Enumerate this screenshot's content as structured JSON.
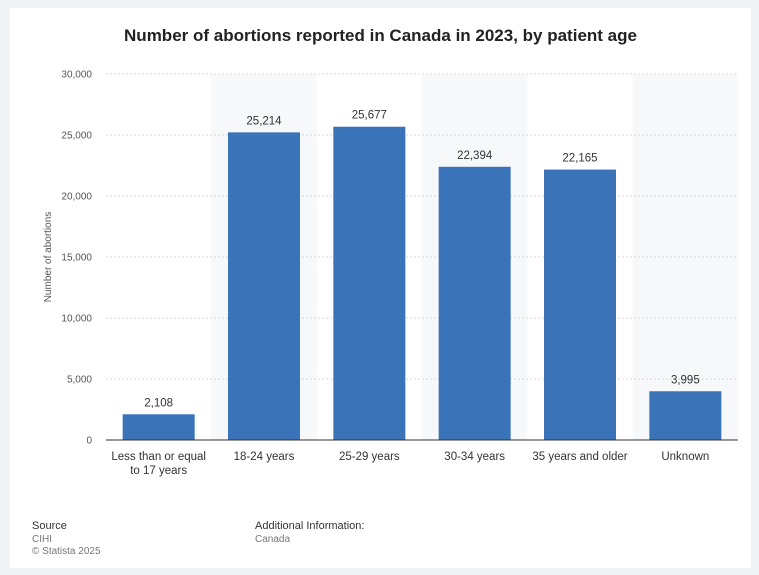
{
  "chart_data": {
    "type": "bar",
    "title": "Number of abortions reported in Canada in 2023, by patient age",
    "xlabel": "",
    "ylabel": "Number of abortions",
    "categories": [
      "Less than or equal to 17 years",
      "18-24 years",
      "25-29 years",
      "30-34 years",
      "35 years and older",
      "Unknown"
    ],
    "category_lines": [
      [
        "Less than or equal",
        "to 17 years"
      ],
      [
        "18-24 years"
      ],
      [
        "25-29 years"
      ],
      [
        "30-34 years"
      ],
      [
        "35 years and older"
      ],
      [
        "Unknown"
      ]
    ],
    "values": [
      2108,
      25214,
      25677,
      22394,
      22165,
      3995
    ],
    "value_labels": [
      "2,108",
      "25,214",
      "25,677",
      "22,394",
      "22,165",
      "3,995"
    ],
    "ylim": [
      0,
      30000
    ],
    "yticks": [
      0,
      5000,
      10000,
      15000,
      20000,
      25000,
      30000
    ],
    "ytick_labels": [
      "0",
      "5,000",
      "10,000",
      "15,000",
      "20,000",
      "25,000",
      "30,000"
    ],
    "grid": true,
    "legend": "none",
    "colors": {
      "bar": "#3a73b8",
      "band": "#f6f8fa",
      "grid": "#d6d9dc",
      "axis": "#333333",
      "page_background": "#f1f4f7"
    }
  },
  "footer": {
    "source_heading": "Source",
    "source_name": "CIHI",
    "copyright": "© Statista 2025",
    "additional_heading": "Additional Information:",
    "additional_value": "Canada"
  }
}
